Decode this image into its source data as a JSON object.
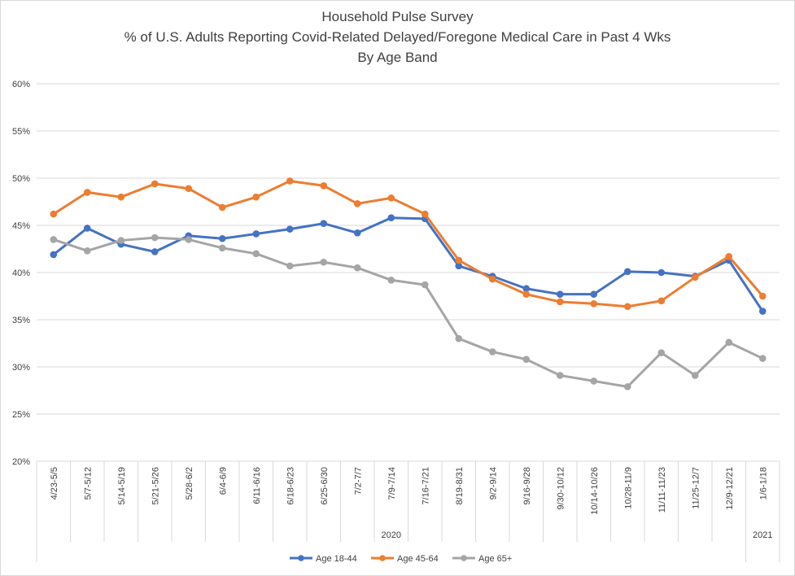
{
  "colors": {
    "age_18_44": "#4472C4",
    "age_45_64": "#ED7D31",
    "age_65_plus": "#A5A5A5",
    "grid": "#d9d9d9",
    "text": "#404040"
  },
  "chart_data": {
    "type": "line",
    "title": [
      "Household Pulse Survey",
      "% of U.S. Adults Reporting Covid-Related Delayed/Foregone Medical Care in Past 4 Wks",
      "By Age Band"
    ],
    "xlabel": "",
    "ylabel": "",
    "ylim": [
      20,
      60
    ],
    "yticks": [
      {
        "value": 20,
        "label": "20%"
      },
      {
        "value": 25,
        "label": "25%"
      },
      {
        "value": 30,
        "label": "30%"
      },
      {
        "value": 35,
        "label": "35%"
      },
      {
        "value": 40,
        "label": "40%"
      },
      {
        "value": 45,
        "label": "45%"
      },
      {
        "value": 50,
        "label": "50%"
      },
      {
        "value": 55,
        "label": "55%"
      },
      {
        "value": 60,
        "label": "60%"
      }
    ],
    "grid": true,
    "legend_position": "bottom",
    "categories": [
      "4/23-5/5",
      "5/7-5/12",
      "5/14-5/19",
      "5/21-5/26",
      "5/28-6/2",
      "6/4-6/9",
      "6/11-6/16",
      "6/18-6/23",
      "6/25-6/30",
      "7/2-7/7",
      "7/9-7/14",
      "7/16-7/21",
      "8/19-8/31",
      "9/2-9/14",
      "9/16-9/28",
      "9/30-10/12",
      "10/14-10/26",
      "10/28-11/9",
      "11/11-11/23",
      "11/25-12/7",
      "12/9-12/21",
      "1/6-1/18"
    ],
    "year_groups": [
      {
        "label": "2020",
        "count": 21
      },
      {
        "label": "2021",
        "count": 1
      }
    ],
    "series": [
      {
        "name": "Age 18-44",
        "color_key": "age_18_44",
        "values": [
          41.9,
          44.7,
          43.0,
          42.2,
          43.9,
          43.6,
          44.1,
          44.6,
          45.2,
          44.2,
          45.8,
          45.7,
          40.7,
          39.6,
          38.3,
          37.7,
          37.7,
          40.1,
          40.0,
          39.6,
          41.3,
          35.9
        ]
      },
      {
        "name": "Age 45-64",
        "color_key": "age_45_64",
        "values": [
          46.2,
          48.5,
          48.0,
          49.4,
          48.9,
          46.9,
          48.0,
          49.7,
          49.2,
          47.3,
          47.9,
          46.2,
          41.3,
          39.3,
          37.7,
          36.9,
          36.7,
          36.4,
          37.0,
          39.5,
          41.7,
          37.5
        ]
      },
      {
        "name": "Age 65+",
        "color_key": "age_65_plus",
        "values": [
          43.5,
          42.3,
          43.4,
          43.7,
          43.5,
          42.6,
          42.0,
          40.7,
          41.1,
          40.5,
          39.2,
          38.7,
          33.0,
          31.6,
          30.8,
          29.1,
          28.5,
          27.9,
          31.5,
          29.1,
          32.6,
          30.9
        ]
      }
    ]
  }
}
